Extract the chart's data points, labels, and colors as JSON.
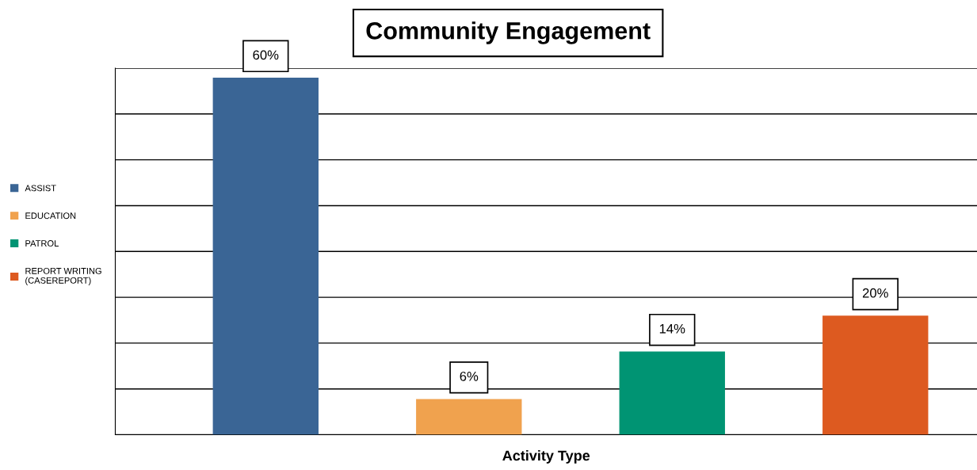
{
  "chart_data": {
    "type": "bar",
    "title": "Community Engagement",
    "xlabel": "Activity Type",
    "categories": [
      null,
      null,
      null,
      null
    ],
    "series": [
      {
        "name": "ASSIST",
        "color": "#3a6595",
        "values": [
          60,
          null,
          null,
          null
        ],
        "value_labels": [
          "60%",
          null,
          null,
          null
        ]
      },
      {
        "name": "EDUCATION",
        "color": "#f0a24e",
        "values": [
          null,
          6,
          null,
          null
        ],
        "value_labels": [
          null,
          "6%",
          null,
          null
        ]
      },
      {
        "name": "PATROL",
        "color": "#009473",
        "values": [
          null,
          null,
          14,
          null
        ],
        "value_labels": [
          null,
          null,
          "14%",
          null
        ]
      },
      {
        "name": "REPORT WRITING\n(CASEREPORT)",
        "color": "#dd5a20",
        "values": [
          null,
          null,
          null,
          20
        ],
        "value_labels": [
          null,
          null,
          null,
          "20%"
        ]
      }
    ],
    "ylim": [
      0,
      61.6
    ],
    "yticks": [
      {
        "value": 0,
        "label": null
      },
      {
        "value": 7.7,
        "label": null
      },
      {
        "value": 15.4,
        "label": null
      },
      {
        "value": 23.1,
        "label": null
      },
      {
        "value": 30.8,
        "label": null
      },
      {
        "value": 38.5,
        "label": null
      },
      {
        "value": 46.2,
        "label": null
      },
      {
        "value": 53.9,
        "label": null
      },
      {
        "value": 61.6,
        "label": null
      }
    ],
    "grid": "y",
    "legend": "left",
    "stacked": true,
    "tick_labels": false
  }
}
